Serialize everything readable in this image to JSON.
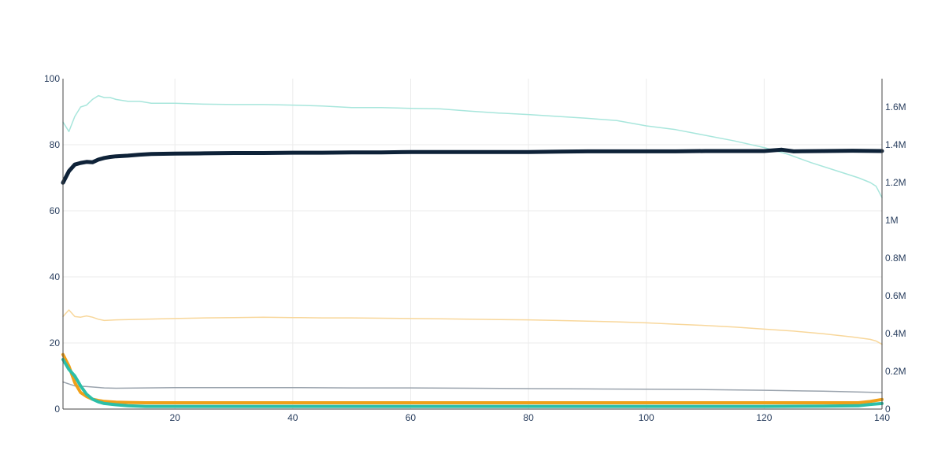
{
  "chart_data": {
    "type": "line",
    "title": "",
    "xlabel": "",
    "ylabel": "",
    "y2label": "",
    "grid": true,
    "xlim": [
      1,
      140
    ],
    "ylim": [
      0,
      100
    ],
    "y2lim": [
      0,
      1750000
    ],
    "x_ticks": [
      20,
      40,
      60,
      80,
      100,
      120,
      140
    ],
    "y_ticks": [
      0,
      20,
      40,
      60,
      80,
      100
    ],
    "y2_ticks": [
      {
        "value": 0,
        "label": "0"
      },
      {
        "value": 200000,
        "label": "0.2M"
      },
      {
        "value": 400000,
        "label": "0.4M"
      },
      {
        "value": 600000,
        "label": "0.6M"
      },
      {
        "value": 800000,
        "label": "0.8M"
      },
      {
        "value": 1000000,
        "label": "1M"
      },
      {
        "value": 1200000,
        "label": "1.2M"
      },
      {
        "value": 1400000,
        "label": "1.4M"
      },
      {
        "value": 1600000,
        "label": "1.6M"
      }
    ],
    "series": [
      {
        "axis": "y2",
        "color": "#a8e6dc",
        "width": 1.5,
        "points": [
          [
            1,
            1520000
          ],
          [
            2,
            1470000
          ],
          [
            3,
            1550000
          ],
          [
            4,
            1600000
          ],
          [
            5,
            1610000
          ],
          [
            6,
            1640000
          ],
          [
            7,
            1660000
          ],
          [
            8,
            1650000
          ],
          [
            9,
            1650000
          ],
          [
            10,
            1640000
          ],
          [
            12,
            1630000
          ],
          [
            14,
            1630000
          ],
          [
            16,
            1620000
          ],
          [
            20,
            1620000
          ],
          [
            25,
            1615000
          ],
          [
            30,
            1613000
          ],
          [
            35,
            1613000
          ],
          [
            40,
            1610000
          ],
          [
            45,
            1605000
          ],
          [
            50,
            1597000
          ],
          [
            55,
            1597000
          ],
          [
            60,
            1593000
          ],
          [
            65,
            1590000
          ],
          [
            70,
            1578000
          ],
          [
            75,
            1568000
          ],
          [
            80,
            1560000
          ],
          [
            85,
            1550000
          ],
          [
            90,
            1540000
          ],
          [
            95,
            1528000
          ],
          [
            100,
            1500000
          ],
          [
            105,
            1480000
          ],
          [
            110,
            1450000
          ],
          [
            115,
            1420000
          ],
          [
            120,
            1385000
          ],
          [
            124,
            1350000
          ],
          [
            128,
            1305000
          ],
          [
            132,
            1265000
          ],
          [
            136,
            1225000
          ],
          [
            138,
            1200000
          ],
          [
            139,
            1180000
          ],
          [
            140,
            1120000
          ]
        ]
      },
      {
        "axis": "y",
        "color": "#f8d79b",
        "width": 1.5,
        "points": [
          [
            1,
            28
          ],
          [
            2,
            30
          ],
          [
            3,
            28
          ],
          [
            4,
            27.8
          ],
          [
            5,
            28.2
          ],
          [
            6,
            27.8
          ],
          [
            7,
            27.2
          ],
          [
            8,
            26.8
          ],
          [
            10,
            27
          ],
          [
            15,
            27.2
          ],
          [
            20,
            27.4
          ],
          [
            25,
            27.6
          ],
          [
            30,
            27.7
          ],
          [
            35,
            27.8
          ],
          [
            40,
            27.7
          ],
          [
            45,
            27.6
          ],
          [
            50,
            27.6
          ],
          [
            55,
            27.5
          ],
          [
            60,
            27.4
          ],
          [
            65,
            27.3
          ],
          [
            70,
            27.2
          ],
          [
            75,
            27.1
          ],
          [
            80,
            27
          ],
          [
            85,
            26.8
          ],
          [
            90,
            26.6
          ],
          [
            95,
            26.4
          ],
          [
            100,
            26.1
          ],
          [
            105,
            25.7
          ],
          [
            110,
            25.3
          ],
          [
            115,
            24.8
          ],
          [
            120,
            24.2
          ],
          [
            125,
            23.6
          ],
          [
            130,
            22.8
          ],
          [
            135,
            21.8
          ],
          [
            138,
            21.1
          ],
          [
            139,
            20.6
          ],
          [
            140,
            19.6
          ]
        ]
      },
      {
        "axis": "y",
        "color": "#9aa3ad",
        "width": 1.5,
        "points": [
          [
            1,
            8.2
          ],
          [
            3,
            7
          ],
          [
            5,
            6.8
          ],
          [
            8,
            6.4
          ],
          [
            10,
            6.3
          ],
          [
            15,
            6.4
          ],
          [
            20,
            6.5
          ],
          [
            25,
            6.5
          ],
          [
            30,
            6.5
          ],
          [
            40,
            6.5
          ],
          [
            50,
            6.4
          ],
          [
            60,
            6.4
          ],
          [
            70,
            6.3
          ],
          [
            80,
            6.2
          ],
          [
            90,
            6.1
          ],
          [
            100,
            6
          ],
          [
            110,
            5.9
          ],
          [
            120,
            5.7
          ],
          [
            130,
            5.4
          ],
          [
            140,
            5
          ]
        ]
      },
      {
        "axis": "y",
        "color": "#f0a018",
        "width": 4,
        "points": [
          [
            1,
            16.5
          ],
          [
            2,
            13
          ],
          [
            3,
            8
          ],
          [
            4,
            5
          ],
          [
            5,
            3.8
          ],
          [
            6,
            3
          ],
          [
            7,
            2.6
          ],
          [
            8,
            2.3
          ],
          [
            10,
            2.1
          ],
          [
            12,
            2
          ],
          [
            15,
            1.9
          ],
          [
            20,
            1.9
          ],
          [
            30,
            1.9
          ],
          [
            40,
            1.9
          ],
          [
            50,
            1.9
          ],
          [
            60,
            1.9
          ],
          [
            70,
            1.9
          ],
          [
            80,
            1.9
          ],
          [
            90,
            1.9
          ],
          [
            100,
            1.9
          ],
          [
            110,
            1.9
          ],
          [
            120,
            1.9
          ],
          [
            130,
            1.9
          ],
          [
            136,
            1.9
          ],
          [
            138,
            2.3
          ],
          [
            140,
            2.9
          ]
        ]
      },
      {
        "axis": "y",
        "color": "#2cbfa8",
        "width": 4,
        "points": [
          [
            1,
            15
          ],
          [
            2,
            12
          ],
          [
            3,
            10
          ],
          [
            4,
            7
          ],
          [
            5,
            4.5
          ],
          [
            6,
            3
          ],
          [
            7,
            2.2
          ],
          [
            8,
            1.7
          ],
          [
            10,
            1.3
          ],
          [
            12,
            1
          ],
          [
            15,
            0.8
          ],
          [
            20,
            0.8
          ],
          [
            30,
            0.8
          ],
          [
            40,
            0.8
          ],
          [
            50,
            0.8
          ],
          [
            60,
            0.8
          ],
          [
            70,
            0.8
          ],
          [
            80,
            0.8
          ],
          [
            90,
            0.8
          ],
          [
            100,
            0.8
          ],
          [
            110,
            0.8
          ],
          [
            120,
            0.8
          ],
          [
            130,
            0.9
          ],
          [
            136,
            1
          ],
          [
            138,
            1.4
          ],
          [
            140,
            1.7
          ]
        ]
      },
      {
        "axis": "y",
        "color": "#0e2238",
        "width": 5,
        "points": [
          [
            1,
            68.5
          ],
          [
            2,
            72
          ],
          [
            3,
            74
          ],
          [
            4,
            74.5
          ],
          [
            5,
            74.8
          ],
          [
            6,
            74.7
          ],
          [
            7,
            75.5
          ],
          [
            8,
            76
          ],
          [
            9,
            76.3
          ],
          [
            10,
            76.5
          ],
          [
            12,
            76.7
          ],
          [
            14,
            77
          ],
          [
            16,
            77.2
          ],
          [
            20,
            77.3
          ],
          [
            25,
            77.4
          ],
          [
            30,
            77.5
          ],
          [
            35,
            77.5
          ],
          [
            40,
            77.6
          ],
          [
            45,
            77.6
          ],
          [
            50,
            77.7
          ],
          [
            55,
            77.7
          ],
          [
            60,
            77.8
          ],
          [
            65,
            77.8
          ],
          [
            70,
            77.8
          ],
          [
            75,
            77.8
          ],
          [
            80,
            77.8
          ],
          [
            85,
            77.9
          ],
          [
            90,
            78
          ],
          [
            95,
            78
          ],
          [
            100,
            78
          ],
          [
            105,
            78
          ],
          [
            110,
            78.1
          ],
          [
            115,
            78.1
          ],
          [
            120,
            78.1
          ],
          [
            123,
            78.5
          ],
          [
            125,
            78
          ],
          [
            130,
            78.1
          ],
          [
            135,
            78.2
          ],
          [
            140,
            78.1
          ]
        ]
      }
    ]
  }
}
